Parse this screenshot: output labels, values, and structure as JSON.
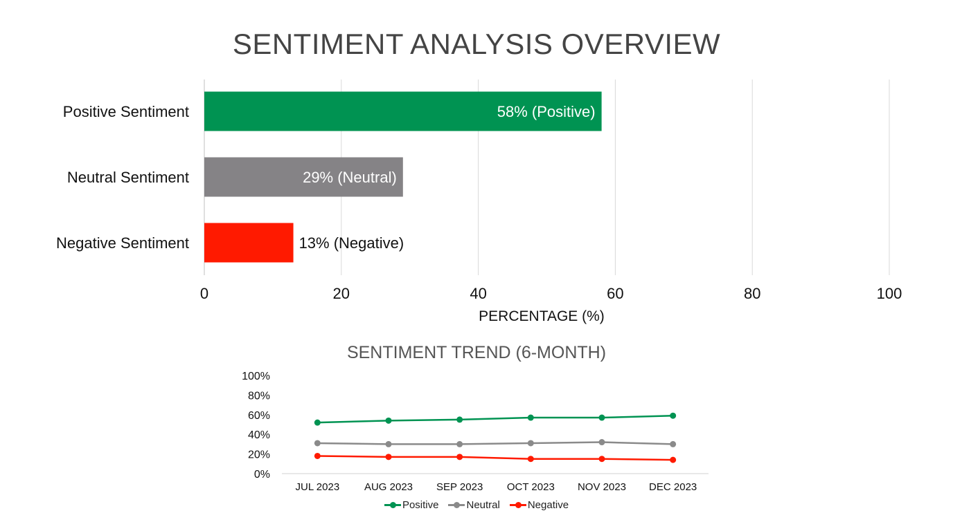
{
  "chart_data": [
    {
      "type": "bar",
      "orientation": "horizontal",
      "title": "SENTIMENT ANALYSIS OVERVIEW",
      "xlabel": "PERCENTAGE (%)",
      "xlim": [
        0,
        100
      ],
      "ticks": [
        "0",
        "20",
        "40",
        "60",
        "80",
        "100"
      ],
      "grid": true,
      "categories": [
        "Positive Sentiment",
        "Neutral Sentiment",
        "Negative Sentiment"
      ],
      "values": [
        58,
        29,
        13
      ],
      "data_labels": [
        "58% (Positive)",
        "29% (Neutral)",
        "13% (Negative)"
      ],
      "colors": [
        "#009352",
        "#858386",
        "#ff1a00"
      ]
    },
    {
      "type": "line",
      "title": "SENTIMENT TREND (6-MONTH)",
      "categories": [
        "JUL 2023",
        "AUG 2023",
        "SEP 2023",
        "OCT 2023",
        "NOV 2023",
        "DEC 2023"
      ],
      "ylim": [
        0,
        100
      ],
      "y_ticks": [
        "0%",
        "20%",
        "40%",
        "60%",
        "80%",
        "100%"
      ],
      "legend_position": "bottom",
      "series": [
        {
          "name": "Positive",
          "values": [
            52,
            54,
            55,
            57,
            57,
            59
          ],
          "color": "#009352"
        },
        {
          "name": "Neutral",
          "values": [
            31,
            30,
            30,
            31,
            32,
            30
          ],
          "color": "#8a8a8a"
        },
        {
          "name": "Negative",
          "values": [
            18,
            17,
            17,
            15,
            15,
            14
          ],
          "color": "#ff1a00"
        }
      ]
    }
  ]
}
